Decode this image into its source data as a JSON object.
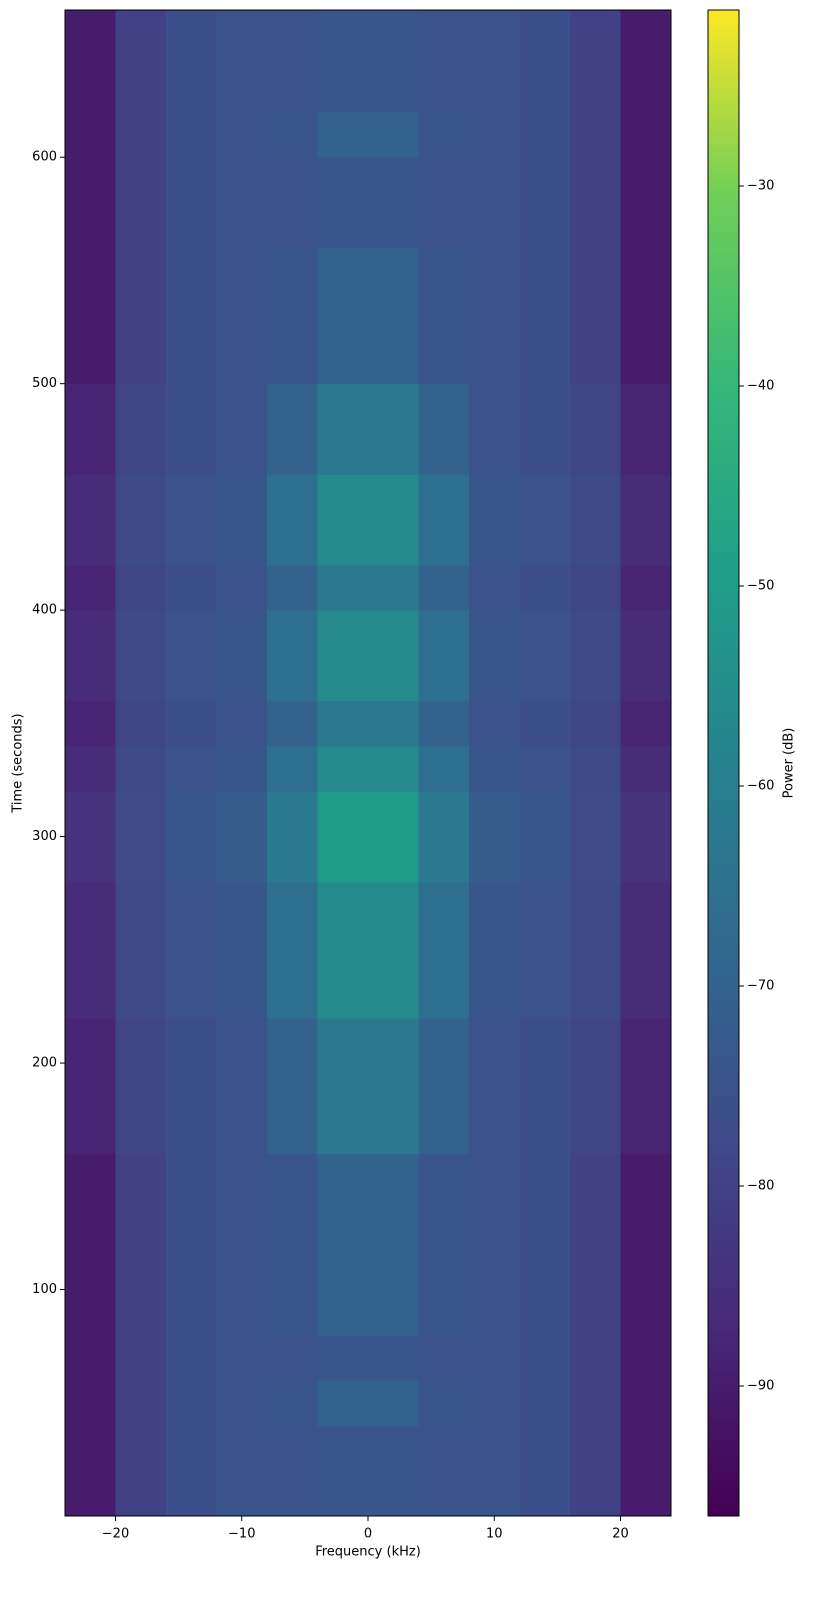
{
  "chart_data": {
    "type": "heatmap",
    "colormap": "viridis",
    "xlabel": "Frequency (kHz)",
    "ylabel": "Time (seconds)",
    "colorbar_label": "Power (dB)",
    "x": [
      -24,
      -20,
      -16,
      -12,
      -8,
      -4,
      0,
      4,
      8,
      12,
      16,
      20,
      24
    ],
    "y": [
      0,
      20,
      40,
      60,
      80,
      100,
      120,
      140,
      160,
      180,
      200,
      220,
      240,
      260,
      280,
      300,
      320,
      340,
      360,
      380,
      400,
      420,
      440,
      460,
      480,
      500,
      520,
      540,
      560,
      580,
      600,
      620,
      640,
      665
    ],
    "values": [
      [
        -90,
        -80,
        -76,
        -75,
        -75,
        -74,
        -74,
        -75,
        -75,
        -76,
        -80,
        -90
      ],
      [
        -90,
        -80,
        -76,
        -75,
        -75,
        -74,
        -74,
        -75,
        -75,
        -76,
        -80,
        -90
      ],
      [
        -90,
        -80,
        -76,
        -75,
        -74,
        -70,
        -70,
        -74,
        -75,
        -76,
        -80,
        -90
      ],
      [
        -90,
        -80,
        -76,
        -75,
        -75,
        -74,
        -74,
        -75,
        -75,
        -76,
        -80,
        -90
      ],
      [
        -90,
        -80,
        -76,
        -75,
        -74,
        -70,
        -70,
        -74,
        -75,
        -76,
        -80,
        -90
      ],
      [
        -90,
        -80,
        -76,
        -75,
        -74,
        -70,
        -70,
        -74,
        -75,
        -76,
        -80,
        -90
      ],
      [
        -90,
        -80,
        -76,
        -75,
        -74,
        -70,
        -70,
        -74,
        -75,
        -76,
        -80,
        -90
      ],
      [
        -90,
        -80,
        -76,
        -75,
        -74,
        -70,
        -70,
        -74,
        -75,
        -76,
        -80,
        -90
      ],
      [
        -88,
        -79,
        -76,
        -75,
        -70,
        -62,
        -62,
        -70,
        -75,
        -76,
        -79,
        -88
      ],
      [
        -88,
        -79,
        -76,
        -75,
        -70,
        -62,
        -62,
        -70,
        -75,
        -76,
        -79,
        -88
      ],
      [
        -88,
        -79,
        -76,
        -75,
        -70,
        -62,
        -62,
        -70,
        -75,
        -76,
        -79,
        -88
      ],
      [
        -86,
        -78,
        -75,
        -74,
        -66,
        -56,
        -56,
        -66,
        -74,
        -75,
        -78,
        -86
      ],
      [
        -86,
        -78,
        -75,
        -74,
        -66,
        -56,
        -56,
        -66,
        -74,
        -75,
        -78,
        -86
      ],
      [
        -86,
        -78,
        -75,
        -74,
        -66,
        -56,
        -56,
        -66,
        -74,
        -75,
        -78,
        -86
      ],
      [
        -84,
        -77,
        -74,
        -72,
        -62,
        -50,
        -50,
        -62,
        -72,
        -74,
        -77,
        -84
      ],
      [
        -84,
        -77,
        -74,
        -72,
        -62,
        -50,
        -50,
        -62,
        -72,
        -74,
        -77,
        -84
      ],
      [
        -86,
        -78,
        -75,
        -74,
        -66,
        -56,
        -56,
        -66,
        -74,
        -75,
        -78,
        -86
      ],
      [
        -88,
        -79,
        -76,
        -75,
        -70,
        -62,
        -62,
        -70,
        -75,
        -76,
        -79,
        -88
      ],
      [
        -86,
        -78,
        -75,
        -74,
        -66,
        -56,
        -56,
        -66,
        -74,
        -75,
        -78,
        -86
      ],
      [
        -86,
        -78,
        -75,
        -74,
        -66,
        -56,
        -56,
        -66,
        -74,
        -75,
        -78,
        -86
      ],
      [
        -88,
        -79,
        -76,
        -75,
        -70,
        -62,
        -62,
        -70,
        -75,
        -76,
        -79,
        -88
      ],
      [
        -86,
        -78,
        -75,
        -74,
        -66,
        -56,
        -56,
        -66,
        -74,
        -75,
        -78,
        -86
      ],
      [
        -86,
        -78,
        -75,
        -74,
        -66,
        -56,
        -56,
        -66,
        -74,
        -75,
        -78,
        -86
      ],
      [
        -88,
        -79,
        -76,
        -75,
        -70,
        -62,
        -62,
        -70,
        -75,
        -76,
        -79,
        -88
      ],
      [
        -88,
        -79,
        -76,
        -75,
        -70,
        -62,
        -62,
        -70,
        -75,
        -76,
        -79,
        -88
      ],
      [
        -90,
        -80,
        -76,
        -75,
        -74,
        -70,
        -70,
        -74,
        -75,
        -76,
        -80,
        -90
      ],
      [
        -90,
        -80,
        -76,
        -75,
        -74,
        -70,
        -70,
        -74,
        -75,
        -76,
        -80,
        -90
      ],
      [
        -90,
        -80,
        -76,
        -75,
        -74,
        -70,
        -70,
        -74,
        -75,
        -76,
        -80,
        -90
      ],
      [
        -90,
        -80,
        -76,
        -75,
        -75,
        -74,
        -74,
        -75,
        -75,
        -76,
        -80,
        -90
      ],
      [
        -90,
        -80,
        -76,
        -75,
        -75,
        -74,
        -74,
        -75,
        -75,
        -76,
        -80,
        -90
      ],
      [
        -90,
        -80,
        -76,
        -75,
        -74,
        -70,
        -70,
        -74,
        -75,
        -76,
        -80,
        -90
      ],
      [
        -90,
        -80,
        -76,
        -75,
        -75,
        -74,
        -74,
        -75,
        -75,
        -76,
        -80,
        -90
      ],
      [
        -90,
        -80,
        -76,
        -75,
        -75,
        -74,
        -74,
        -75,
        -75,
        -76,
        -80,
        -90
      ]
    ],
    "xlim": [
      -24,
      24
    ],
    "ylim": [
      0,
      665
    ],
    "clim": [
      -96.5,
      -21.2
    ],
    "xticks": [
      {
        "value": -20,
        "label": "−20"
      },
      {
        "value": -10,
        "label": "−10"
      },
      0,
      10,
      20
    ],
    "yticks": [
      100,
      200,
      300,
      400,
      500,
      600
    ],
    "cticks": [
      {
        "value": -90,
        "label": "−90"
      },
      {
        "value": -80,
        "label": "−80"
      },
      {
        "value": -70,
        "label": "−70"
      },
      {
        "value": -60,
        "label": "−60"
      },
      {
        "value": -50,
        "label": "−50"
      },
      {
        "value": -40,
        "label": "−40"
      },
      {
        "value": -30,
        "label": "−30"
      }
    ]
  }
}
